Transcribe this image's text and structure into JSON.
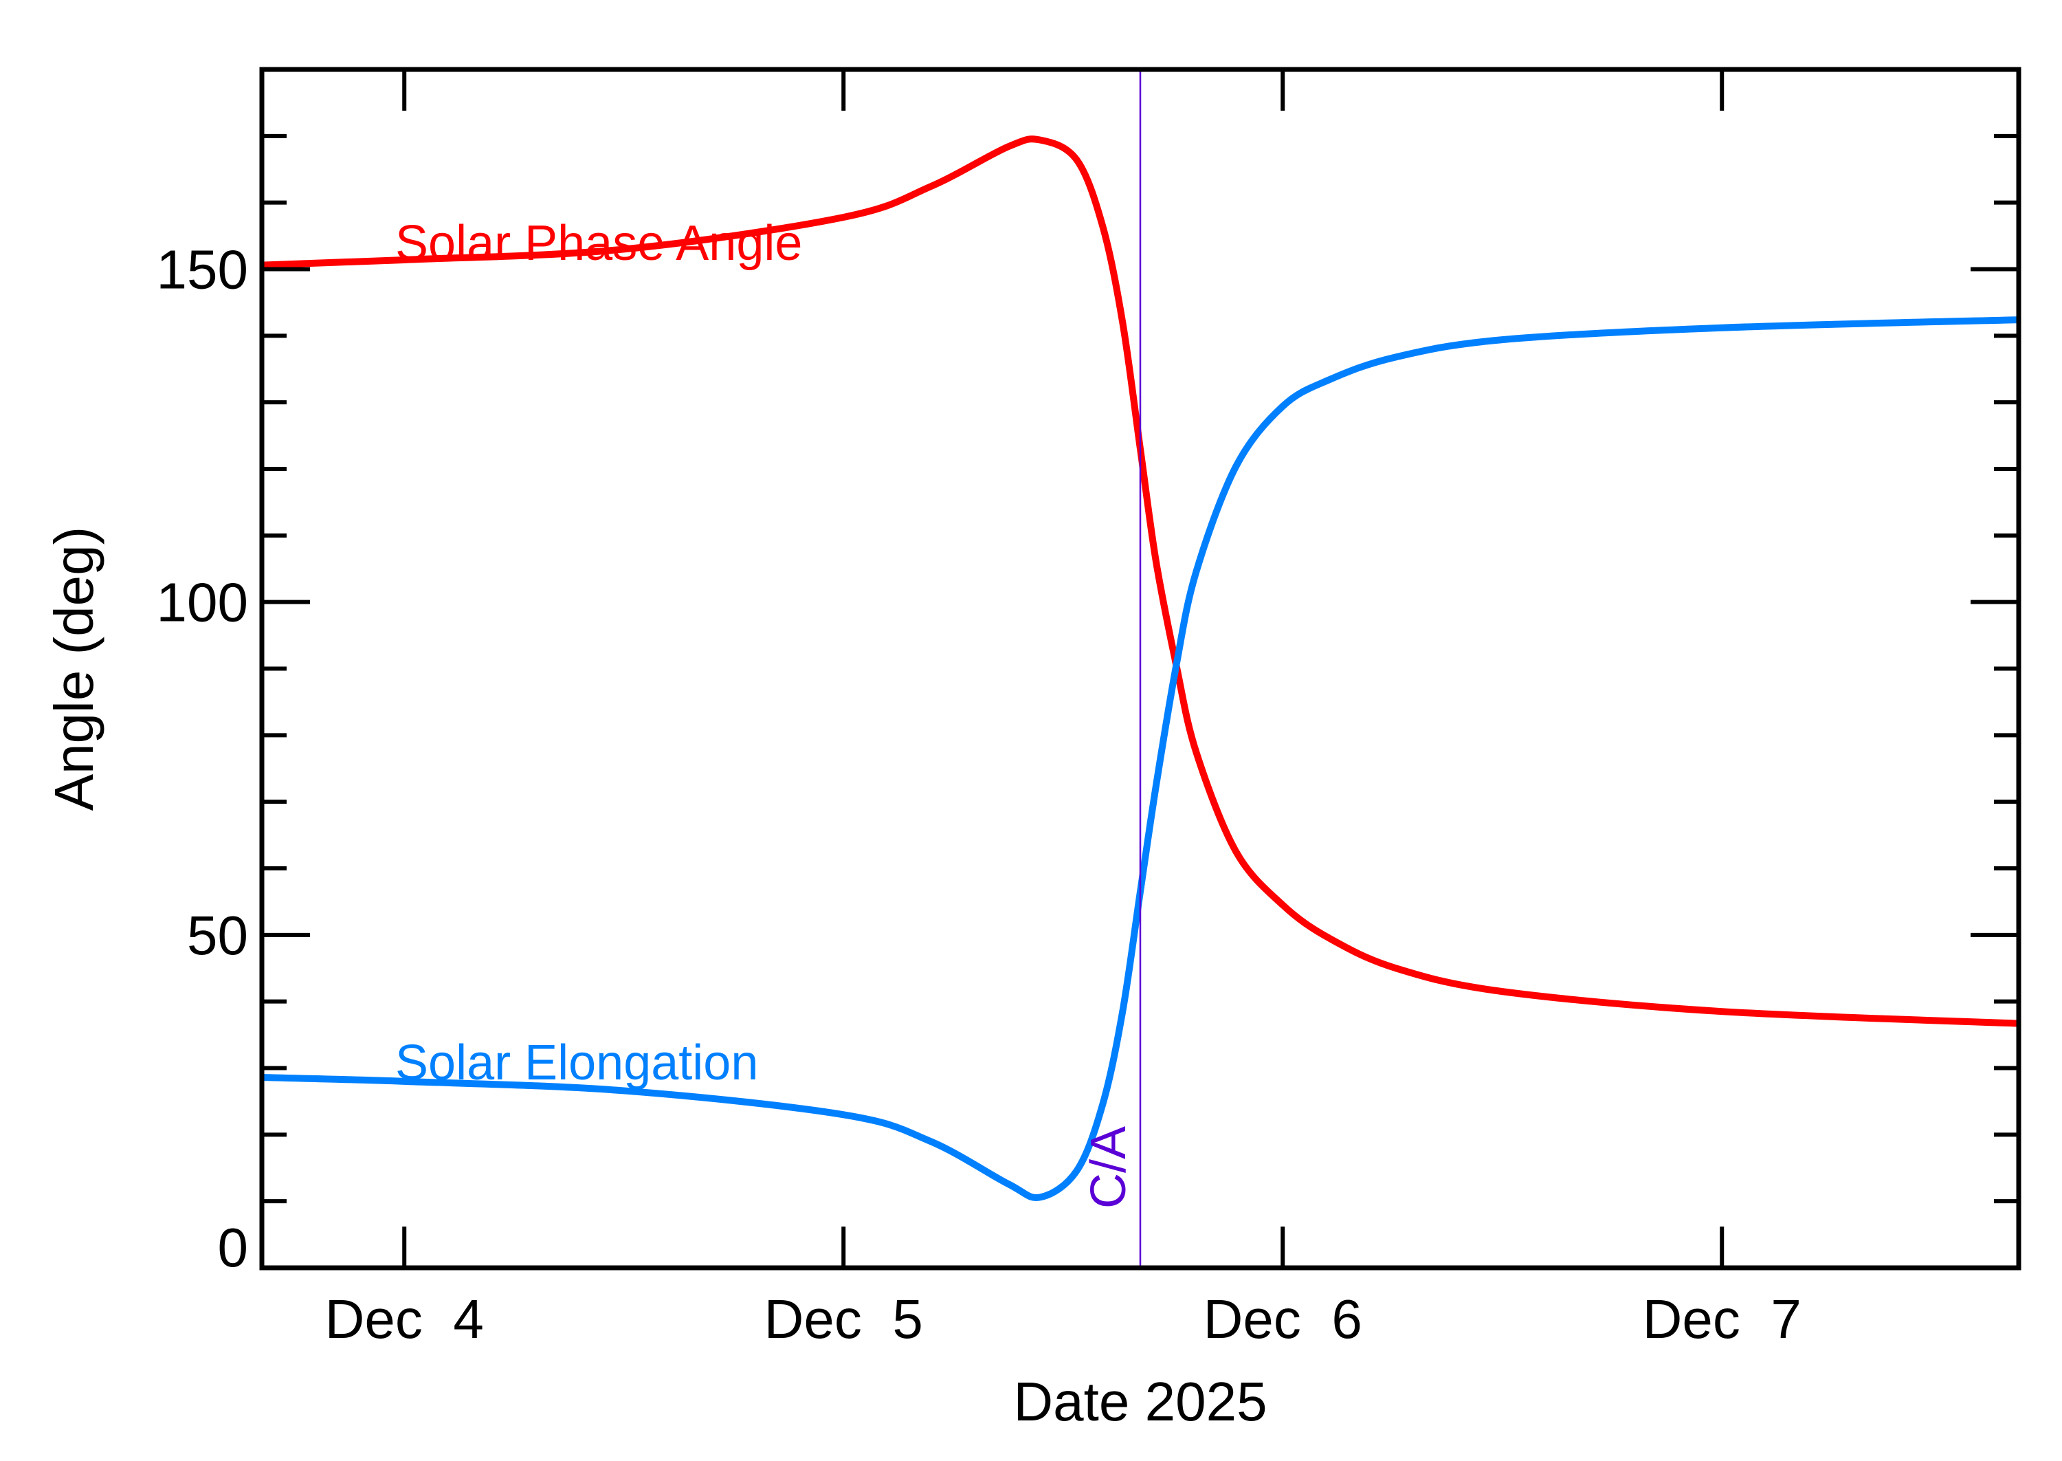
{
  "chart_data": {
    "type": "line",
    "title": "",
    "xlabel": "Date 2025",
    "ylabel": "Angle (deg)",
    "xlim": [
      "2025-12-03T16:13",
      "2025-12-07T16:13"
    ],
    "ylim": [
      0,
      180
    ],
    "x_ticks": [
      {
        "date": "2025-12-04T00:00",
        "label": "Dec  4"
      },
      {
        "date": "2025-12-05T00:00",
        "label": "Dec  5"
      },
      {
        "date": "2025-12-06T00:00",
        "label": "Dec  6"
      },
      {
        "date": "2025-12-07T00:00",
        "label": "Dec  7"
      }
    ],
    "y_ticks": [
      0,
      50,
      100,
      150
    ],
    "y_minor_step": 10,
    "x_minor_ticks": false,
    "grid": false,
    "legend": "inline labels near left of each curve",
    "closest_approach": {
      "label": "C/A",
      "date": "2025-12-05T16:13",
      "color": "#5a00d6"
    },
    "series": [
      {
        "name": "Solar Phase Angle",
        "color": "#ff0000",
        "points": [
          [
            "2025-12-03T16:13",
            150.6
          ],
          [
            "2025-12-04T00:00",
            151.4
          ],
          [
            "2025-12-04T12:00",
            153.0
          ],
          [
            "2025-12-05T00:00",
            157.8
          ],
          [
            "2025-12-05T04:45",
            162.4
          ],
          [
            "2025-12-05T09:00",
            168.4
          ],
          [
            "2025-12-05T10:45",
            169.4
          ],
          [
            "2025-12-05T12:45",
            166.4
          ],
          [
            "2025-12-05T14:10",
            156.4
          ],
          [
            "2025-12-05T15:15",
            142.0
          ],
          [
            "2025-12-05T16:13",
            123.0
          ],
          [
            "2025-12-05T17:05",
            106.0
          ],
          [
            "2025-12-05T18:11",
            90.5
          ],
          [
            "2025-12-05T19:16",
            77.5
          ],
          [
            "2025-12-05T21:27",
            62.5
          ],
          [
            "2025-12-06T00:00",
            54.5
          ],
          [
            "2025-12-06T02:33",
            49.5
          ],
          [
            "2025-12-06T06:11",
            45.0
          ],
          [
            "2025-12-06T12:00",
            41.5
          ],
          [
            "2025-12-07T00:00",
            38.5
          ],
          [
            "2025-12-07T16:13",
            36.7
          ]
        ]
      },
      {
        "name": "Solar Elongation",
        "color": "#0080ff",
        "points": [
          [
            "2025-12-03T16:13",
            28.6
          ],
          [
            "2025-12-04T00:00",
            28.0
          ],
          [
            "2025-12-04T12:00",
            26.6
          ],
          [
            "2025-12-05T00:00",
            23.0
          ],
          [
            "2025-12-05T04:45",
            19.0
          ],
          [
            "2025-12-05T09:00",
            12.6
          ],
          [
            "2025-12-05T10:45",
            10.6
          ],
          [
            "2025-12-05T12:45",
            14.6
          ],
          [
            "2025-12-05T14:10",
            24.6
          ],
          [
            "2025-12-05T15:15",
            38.5
          ],
          [
            "2025-12-05T16:13",
            56.5
          ],
          [
            "2025-12-05T17:05",
            72.5
          ],
          [
            "2025-12-05T18:11",
            90.5
          ],
          [
            "2025-12-05T19:16",
            104.5
          ],
          [
            "2025-12-05T21:27",
            120.4
          ],
          [
            "2025-12-06T00:00",
            129.4
          ],
          [
            "2025-12-06T02:33",
            133.4
          ],
          [
            "2025-12-06T06:11",
            136.8
          ],
          [
            "2025-12-06T12:00",
            139.4
          ],
          [
            "2025-12-07T00:00",
            141.2
          ],
          [
            "2025-12-07T16:13",
            142.4
          ]
        ]
      }
    ]
  }
}
